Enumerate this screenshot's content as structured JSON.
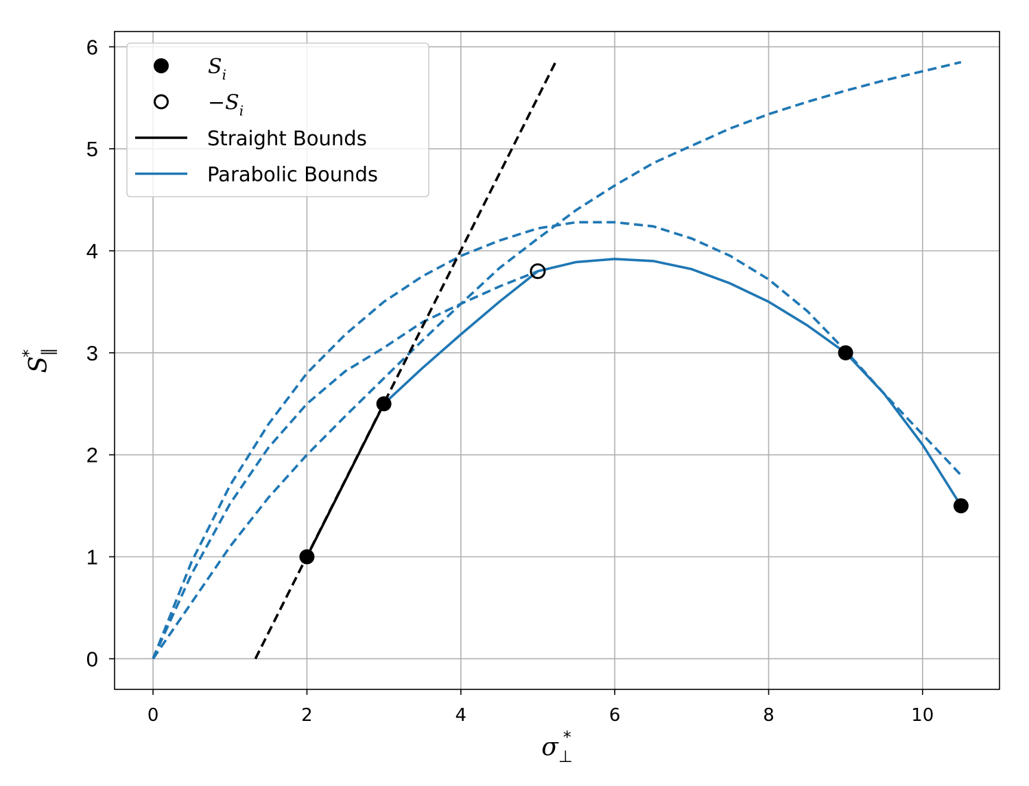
{
  "chart_data": {
    "type": "line",
    "xlabel": "σ",
    "xlabel_sub": "⊥",
    "xlabel_sup": "*",
    "ylabel": "S",
    "ylabel_sub": "∥",
    "ylabel_sup": "*",
    "xlim": [
      -0.5,
      11.0
    ],
    "ylim": [
      -0.3,
      6.15
    ],
    "xticks": [
      0,
      2,
      4,
      6,
      8,
      10
    ],
    "yticks": [
      0,
      1,
      2,
      3,
      4,
      5,
      6
    ],
    "grid": true,
    "legend_position": "top-left",
    "colors": {
      "black": "#000000",
      "blue": "#1f77b4",
      "grid": "#b0b0b0"
    },
    "legend": [
      {
        "key": "si",
        "label": "S",
        "sub": "i",
        "marker": "filled-circle"
      },
      {
        "key": "neg_si",
        "label": "−S",
        "sub": "i",
        "marker": "open-circle"
      },
      {
        "key": "straight",
        "label": "Straight Bounds",
        "line": "black"
      },
      {
        "key": "parabolic",
        "label": "Parabolic Bounds",
        "line": "blue"
      }
    ],
    "points_filled": [
      {
        "x": 2,
        "y": 1
      },
      {
        "x": 3,
        "y": 2.5
      },
      {
        "x": 9,
        "y": 3
      },
      {
        "x": 10.5,
        "y": 1.5
      }
    ],
    "points_open": [
      {
        "x": 5,
        "y": 3.8
      }
    ],
    "straight_solid": [
      [
        2,
        1
      ],
      [
        3,
        2.5
      ]
    ],
    "straight_dashed": [
      [
        1.33,
        0
      ],
      [
        5.23,
        5.85
      ]
    ],
    "parabolic_solid": [
      [
        3.0,
        2.5
      ],
      [
        3.5,
        2.85
      ],
      [
        4.0,
        3.18
      ],
      [
        4.5,
        3.5
      ],
      [
        5.0,
        3.8
      ],
      [
        5.5,
        3.89
      ],
      [
        6.0,
        3.92
      ],
      [
        6.5,
        3.9
      ],
      [
        7.0,
        3.82
      ],
      [
        7.5,
        3.68
      ],
      [
        8.0,
        3.5
      ],
      [
        8.5,
        3.27
      ],
      [
        9.0,
        3.0
      ],
      [
        9.5,
        2.6
      ],
      [
        10.0,
        2.1
      ],
      [
        10.5,
        1.5
      ]
    ],
    "parabolic_dashed": [
      [
        [
          0,
          0
        ],
        [
          0.5,
          0.95
        ],
        [
          1.0,
          1.7
        ],
        [
          1.5,
          2.3
        ],
        [
          2.0,
          2.8
        ],
        [
          2.5,
          3.18
        ],
        [
          3.0,
          3.5
        ],
        [
          3.5,
          3.75
        ],
        [
          4.0,
          3.95
        ],
        [
          4.5,
          4.1
        ],
        [
          5.0,
          4.22
        ],
        [
          5.5,
          4.28
        ],
        [
          6.0,
          4.28
        ],
        [
          6.5,
          4.24
        ],
        [
          7.0,
          4.12
        ],
        [
          7.5,
          3.95
        ],
        [
          8.0,
          3.72
        ],
        [
          8.5,
          3.41
        ],
        [
          9.0,
          3.02
        ],
        [
          9.5,
          2.6
        ],
        [
          10.0,
          2.2
        ],
        [
          10.5,
          1.8
        ]
      ],
      [
        [
          0,
          0
        ],
        [
          0.5,
          0.83
        ],
        [
          1.0,
          1.52
        ],
        [
          1.5,
          2.07
        ],
        [
          2.0,
          2.5
        ],
        [
          2.5,
          2.82
        ],
        [
          3.0,
          3.05
        ],
        [
          3.5,
          3.3
        ],
        [
          4.0,
          3.48
        ],
        [
          4.5,
          3.65
        ],
        [
          5.0,
          3.8
        ]
      ],
      [
        [
          0,
          0
        ],
        [
          0.5,
          0.55
        ],
        [
          1.0,
          1.1
        ],
        [
          1.5,
          1.58
        ],
        [
          2.0,
          2.0
        ],
        [
          2.5,
          2.38
        ],
        [
          3.0,
          2.75
        ],
        [
          3.5,
          3.12
        ],
        [
          4.0,
          3.48
        ],
        [
          4.5,
          3.83
        ],
        [
          5.0,
          4.12
        ],
        [
          5.5,
          4.4
        ],
        [
          6.0,
          4.64
        ],
        [
          6.5,
          4.86
        ],
        [
          7.0,
          5.03
        ],
        [
          7.5,
          5.2
        ],
        [
          8.0,
          5.34
        ],
        [
          8.5,
          5.46
        ],
        [
          9.0,
          5.57
        ],
        [
          9.5,
          5.67
        ],
        [
          10.0,
          5.76
        ],
        [
          10.5,
          5.85
        ]
      ]
    ]
  }
}
